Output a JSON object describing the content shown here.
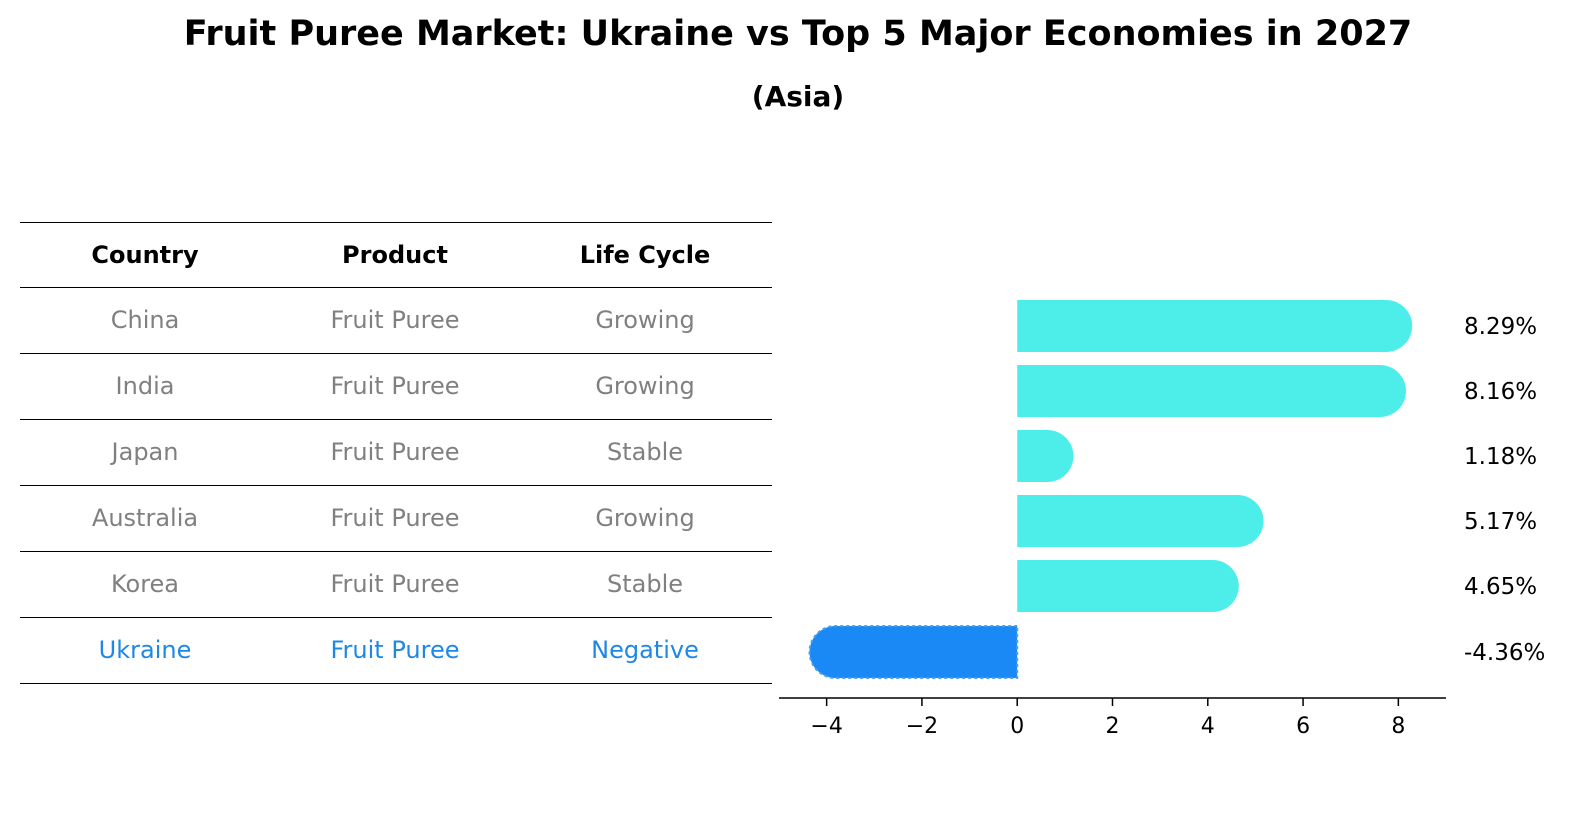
{
  "title": "Fruit Puree Market: Ukraine vs Top 5 Major Economies in 2027",
  "subtitle": "(Asia)",
  "table": {
    "headers": [
      "Country",
      "Product",
      "Life Cycle"
    ],
    "rows": [
      [
        "China",
        "Fruit Puree",
        "Growing"
      ],
      [
        "India",
        "Fruit Puree",
        "Growing"
      ],
      [
        "Japan",
        "Fruit Puree",
        "Stable"
      ],
      [
        "Australia",
        "Fruit Puree",
        "Growing"
      ],
      [
        "Korea",
        "Fruit Puree",
        "Stable"
      ],
      [
        "Ukraine",
        "Fruit Puree",
        "Negative"
      ]
    ]
  },
  "colors": {
    "positive": "#4deeea",
    "negative": "#1a88f5",
    "highlight_text": "#1e88e5",
    "muted_text": "#808080"
  },
  "chart_data": {
    "type": "bar",
    "orientation": "horizontal",
    "categories": [
      "China",
      "India",
      "Japan",
      "Australia",
      "Korea",
      "Ukraine"
    ],
    "values": [
      8.29,
      8.16,
      1.18,
      5.17,
      4.65,
      -4.36
    ],
    "value_labels": [
      "8.29%",
      "8.16%",
      "1.18%",
      "5.17%",
      "4.65%",
      "-4.36%"
    ],
    "xlim": [
      -5,
      9
    ],
    "xticks": [
      -4,
      -2,
      0,
      2,
      4,
      6,
      8
    ],
    "xtick_labels": [
      "−4",
      "−2",
      "0",
      "2",
      "4",
      "6",
      "8"
    ],
    "xlabel": "",
    "ylabel": "",
    "grid": false
  }
}
